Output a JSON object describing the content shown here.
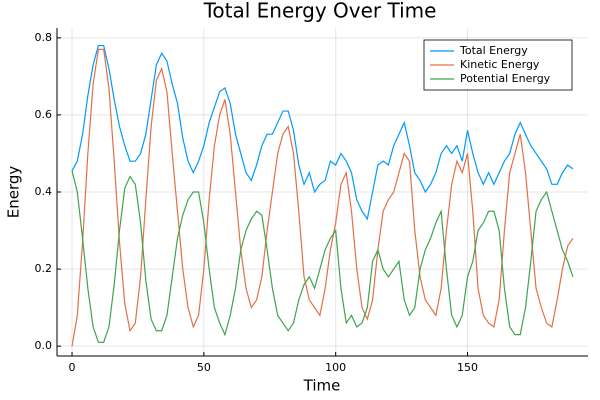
{
  "chart_data": {
    "type": "line",
    "title": "Total Energy Over Time",
    "x_label": "Time",
    "y_label": "Energy",
    "x": [
      0,
      2,
      4,
      6,
      8,
      10,
      12,
      14,
      16,
      18,
      20,
      22,
      24,
      26,
      28,
      30,
      32,
      34,
      36,
      38,
      40,
      42,
      44,
      46,
      48,
      50,
      52,
      54,
      56,
      58,
      60,
      62,
      64,
      66,
      68,
      70,
      72,
      74,
      76,
      78,
      80,
      82,
      84,
      86,
      88,
      90,
      92,
      94,
      96,
      98,
      100,
      102,
      104,
      106,
      108,
      110,
      112,
      114,
      116,
      118,
      120,
      122,
      124,
      126,
      128,
      130,
      132,
      134,
      136,
      138,
      140,
      142,
      144,
      146,
      148,
      150,
      152,
      154,
      156,
      158,
      160,
      162,
      164,
      166,
      168,
      170,
      172,
      174,
      176,
      178,
      180,
      182,
      184,
      186,
      188,
      190
    ],
    "series": [
      {
        "name": "Total Energy",
        "color": "#009afa",
        "values": [
          0.455,
          0.48,
          0.55,
          0.65,
          0.73,
          0.78,
          0.78,
          0.72,
          0.64,
          0.57,
          0.52,
          0.48,
          0.48,
          0.5,
          0.55,
          0.64,
          0.73,
          0.76,
          0.74,
          0.68,
          0.63,
          0.54,
          0.48,
          0.45,
          0.48,
          0.52,
          0.58,
          0.62,
          0.66,
          0.67,
          0.63,
          0.55,
          0.5,
          0.45,
          0.43,
          0.47,
          0.52,
          0.55,
          0.55,
          0.58,
          0.61,
          0.61,
          0.56,
          0.47,
          0.42,
          0.45,
          0.4,
          0.42,
          0.43,
          0.48,
          0.47,
          0.5,
          0.48,
          0.45,
          0.38,
          0.35,
          0.33,
          0.4,
          0.47,
          0.48,
          0.47,
          0.52,
          0.55,
          0.58,
          0.52,
          0.45,
          0.43,
          0.4,
          0.42,
          0.45,
          0.5,
          0.52,
          0.5,
          0.52,
          0.48,
          0.56,
          0.5,
          0.45,
          0.42,
          0.45,
          0.42,
          0.45,
          0.48,
          0.5,
          0.55,
          0.58,
          0.55,
          0.52,
          0.5,
          0.48,
          0.46,
          0.42,
          0.42,
          0.45,
          0.47,
          0.46
        ]
      },
      {
        "name": "Kinetic Energy",
        "color": "#e36f47",
        "values": [
          0,
          0.08,
          0.27,
          0.5,
          0.68,
          0.77,
          0.77,
          0.67,
          0.48,
          0.27,
          0.11,
          0.04,
          0.06,
          0.18,
          0.38,
          0.57,
          0.69,
          0.72,
          0.66,
          0.5,
          0.35,
          0.2,
          0.1,
          0.05,
          0.08,
          0.2,
          0.38,
          0.52,
          0.6,
          0.64,
          0.55,
          0.4,
          0.25,
          0.15,
          0.1,
          0.12,
          0.18,
          0.3,
          0.4,
          0.5,
          0.55,
          0.57,
          0.5,
          0.35,
          0.18,
          0.12,
          0.1,
          0.08,
          0.15,
          0.25,
          0.32,
          0.42,
          0.45,
          0.35,
          0.2,
          0.1,
          0.07,
          0.12,
          0.25,
          0.35,
          0.38,
          0.4,
          0.45,
          0.5,
          0.48,
          0.3,
          0.18,
          0.12,
          0.1,
          0.08,
          0.15,
          0.3,
          0.42,
          0.48,
          0.45,
          0.5,
          0.35,
          0.15,
          0.08,
          0.06,
          0.05,
          0.12,
          0.3,
          0.45,
          0.5,
          0.55,
          0.45,
          0.3,
          0.15,
          0.1,
          0.06,
          0.05,
          0.12,
          0.2,
          0.26,
          0.28
        ]
      },
      {
        "name": "Potential Energy",
        "color": "#3ea44e",
        "values": [
          0.455,
          0.4,
          0.28,
          0.15,
          0.05,
          0.01,
          0.01,
          0.05,
          0.16,
          0.3,
          0.41,
          0.44,
          0.42,
          0.32,
          0.17,
          0.07,
          0.04,
          0.04,
          0.08,
          0.18,
          0.28,
          0.34,
          0.38,
          0.4,
          0.4,
          0.32,
          0.2,
          0.1,
          0.06,
          0.03,
          0.08,
          0.15,
          0.25,
          0.3,
          0.33,
          0.35,
          0.34,
          0.25,
          0.15,
          0.08,
          0.06,
          0.04,
          0.06,
          0.12,
          0.16,
          0.18,
          0.15,
          0.2,
          0.25,
          0.28,
          0.3,
          0.15,
          0.06,
          0.08,
          0.05,
          0.06,
          0.1,
          0.22,
          0.25,
          0.2,
          0.18,
          0.2,
          0.22,
          0.12,
          0.08,
          0.1,
          0.2,
          0.25,
          0.28,
          0.32,
          0.35,
          0.2,
          0.08,
          0.05,
          0.08,
          0.18,
          0.22,
          0.3,
          0.32,
          0.35,
          0.35,
          0.3,
          0.15,
          0.05,
          0.03,
          0.03,
          0.1,
          0.22,
          0.35,
          0.38,
          0.4,
          0.35,
          0.3,
          0.25,
          0.22,
          0.18
        ]
      }
    ],
    "xlim": [
      -5.7,
      195.7
    ],
    "ylim": [
      -0.0255,
      0.8255
    ],
    "xticks": [
      0,
      50,
      100,
      150
    ],
    "yticks": [
      {
        "value": 0,
        "label": "0.0"
      },
      {
        "value": 0.2,
        "label": "0.2"
      },
      {
        "value": 0.4,
        "label": "0.4"
      },
      {
        "value": 0.6,
        "label": "0.6"
      },
      {
        "value": 0.8,
        "label": "0.8"
      }
    ],
    "grid": true,
    "legend": "top-right"
  }
}
